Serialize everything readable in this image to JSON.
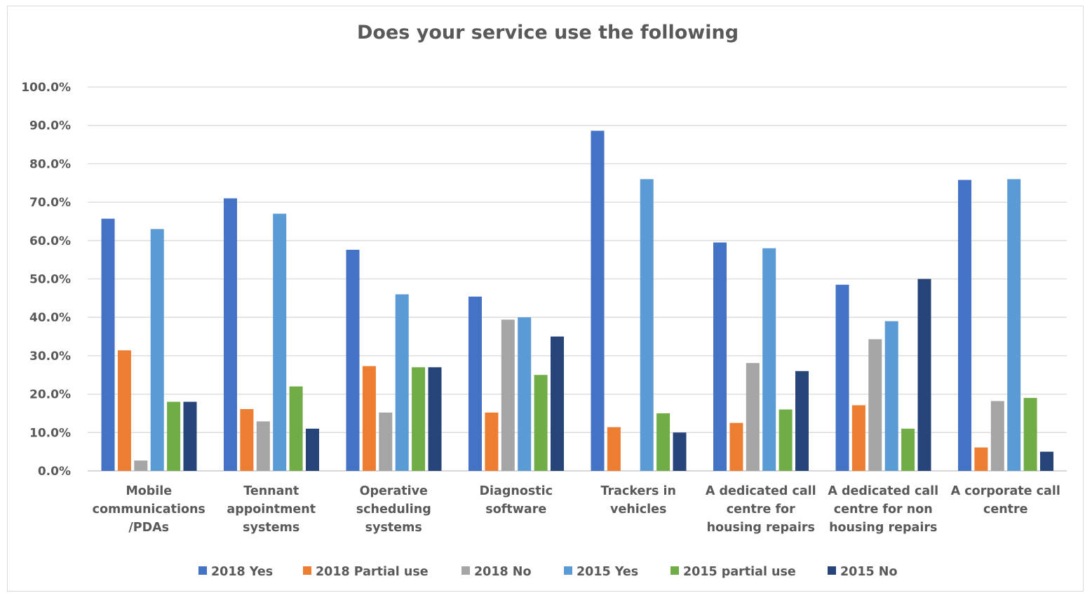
{
  "chart_data": {
    "type": "bar",
    "title": "Does your service use the following",
    "xlabel": "",
    "ylabel": "",
    "ylim": [
      0,
      100
    ],
    "y_ticks": [
      "0.0%",
      "10.0%",
      "20.0%",
      "30.0%",
      "40.0%",
      "50.0%",
      "60.0%",
      "70.0%",
      "80.0%",
      "90.0%",
      "100.0%"
    ],
    "grid": true,
    "legend_position": "bottom",
    "categories": [
      [
        "Mobile",
        "communications",
        "/PDAs"
      ],
      [
        "Tennant",
        "appointment",
        "systems"
      ],
      [
        "Operative",
        "scheduling",
        "systems"
      ],
      [
        "Diagnostic",
        "software"
      ],
      [
        "Trackers in",
        "vehicles"
      ],
      [
        "A dedicated call",
        "centre for",
        "housing repairs"
      ],
      [
        "A dedicated call",
        "centre for non",
        "housing repairs"
      ],
      [
        "A corporate call",
        "centre"
      ]
    ],
    "series": [
      {
        "name": "2018 Yes",
        "color": "#4472C4",
        "values": [
          65.7,
          71.0,
          57.6,
          45.4,
          88.6,
          59.5,
          48.5,
          75.8
        ]
      },
      {
        "name": "2018 Partial use",
        "color": "#ED7D31",
        "values": [
          31.4,
          16.1,
          27.3,
          15.2,
          11.4,
          12.5,
          17.1,
          6.1
        ]
      },
      {
        "name": "2018 No",
        "color": "#A5A5A5",
        "values": [
          2.7,
          12.9,
          15.2,
          39.4,
          0,
          28.1,
          34.3,
          18.2
        ]
      },
      {
        "name": "2015 Yes",
        "color": "#5B9BD5",
        "values": [
          63.0,
          67.0,
          46.0,
          40.0,
          76.0,
          58.0,
          39.0,
          76.0
        ]
      },
      {
        "name": "2015 partial use",
        "color": "#70AD47",
        "values": [
          18.0,
          22.0,
          27.0,
          25.0,
          15.0,
          16.0,
          11.0,
          19.0
        ]
      },
      {
        "name": "2015 No",
        "color": "#264478",
        "values": [
          18.0,
          11.0,
          27.0,
          35.0,
          10.0,
          26.0,
          50.0,
          5.0
        ]
      }
    ]
  }
}
